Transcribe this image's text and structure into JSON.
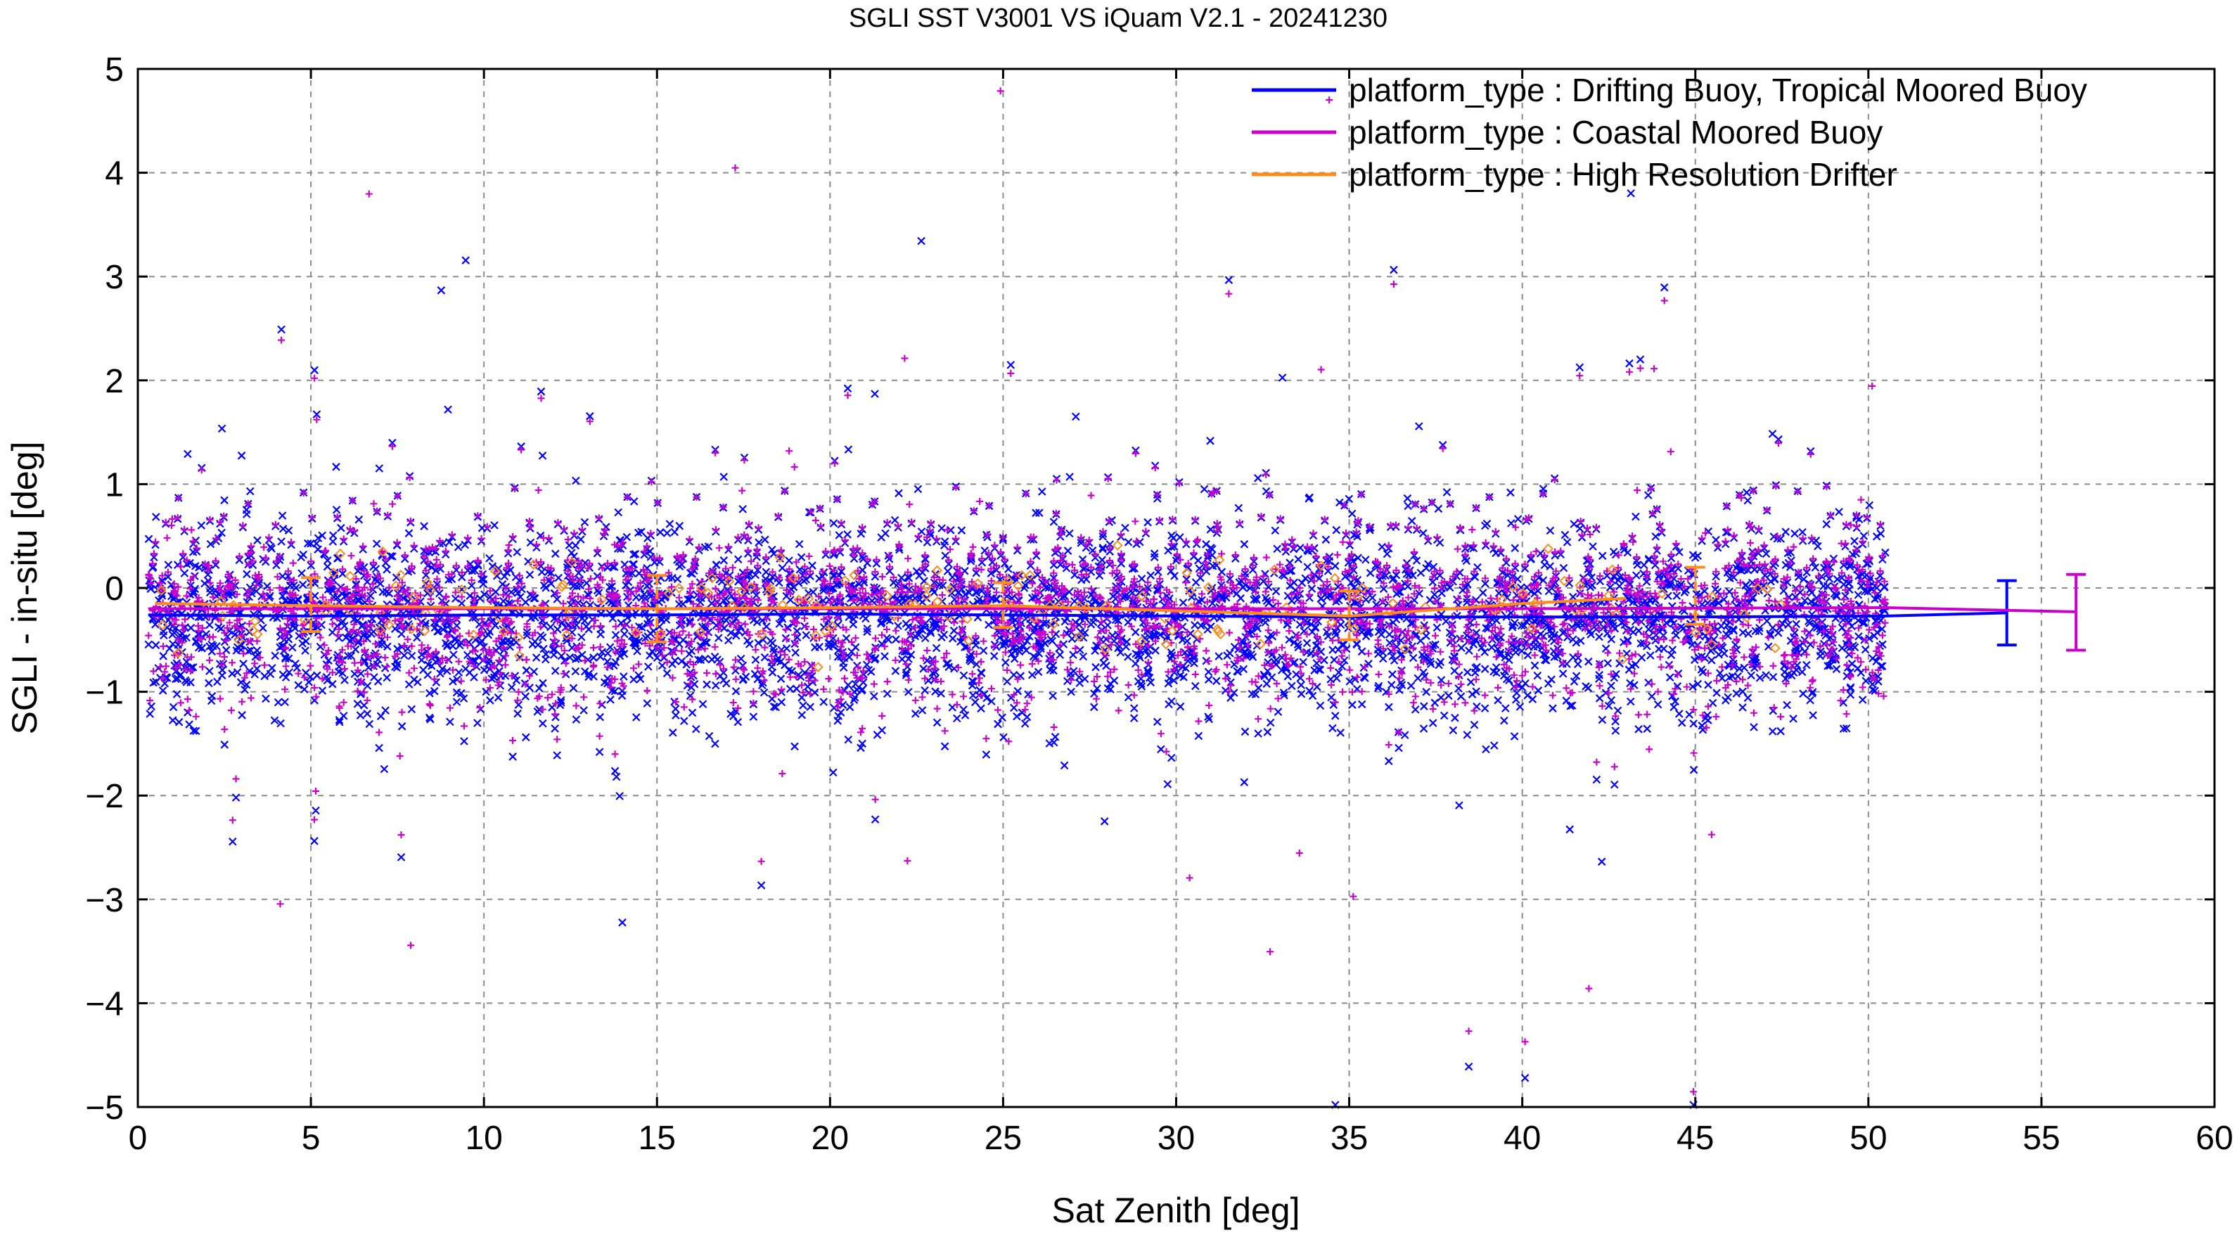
{
  "chart_data": {
    "type": "scatter",
    "title": "SGLI SST V3001 VS iQuam V2.1  - 20241230",
    "xlabel": "Sat Zenith [deg]",
    "ylabel": "SGLI - in-situ [deg]",
    "xlim": [
      0,
      60
    ],
    "ylim": [
      -5,
      5
    ],
    "x_ticks": [
      "0",
      "5",
      "10",
      "15",
      "20",
      "25",
      "30",
      "35",
      "40",
      "45",
      "50",
      "55",
      "60"
    ],
    "y_ticks": [
      "5",
      "4",
      "3",
      "2",
      "1",
      "0",
      "−1",
      "−2",
      "−3",
      "−4",
      "−5"
    ],
    "grid": true,
    "legend_position": "top-right",
    "series": [
      {
        "name": "platform_type : Drifting Buoy, Tropical Moored Buoy",
        "color": "#0000ff",
        "marker": "x",
        "x_range_of_points": [
          0.3,
          50.5
        ],
        "mean_line": {
          "x": [
            0.3,
            5,
            10,
            15,
            20,
            25,
            30,
            35,
            40,
            45,
            50.5,
            54
          ],
          "y": [
            -0.26,
            -0.27,
            -0.26,
            -0.26,
            -0.25,
            -0.26,
            -0.27,
            -0.28,
            -0.28,
            -0.28,
            -0.27,
            -0.24
          ]
        },
        "error_bar": {
          "x": 54,
          "mean": -0.24,
          "low": -0.55,
          "high": 0.07
        }
      },
      {
        "name": "platform_type : Coastal Moored Buoy",
        "color": "#cc00cc",
        "marker": "+",
        "x_range_of_points": [
          0.3,
          50.5
        ],
        "mean_line": {
          "x": [
            0.3,
            10,
            20,
            30,
            40,
            50.5,
            56
          ],
          "y": [
            -0.2,
            -0.2,
            -0.2,
            -0.2,
            -0.2,
            -0.19,
            -0.23
          ]
        },
        "error_bar": {
          "x": 56,
          "mean": -0.23,
          "low": -0.6,
          "high": 0.13
        }
      },
      {
        "name": "platform_type : High Resolution Drifter",
        "color": "#ff8c1a",
        "marker": "diamond",
        "x_range_of_points": [
          0.3,
          47.5
        ],
        "mean_line": {
          "x": [
            0.5,
            5,
            10,
            15,
            20,
            25,
            30,
            35,
            40,
            43
          ],
          "y": [
            -0.15,
            -0.17,
            -0.19,
            -0.2,
            -0.19,
            -0.17,
            -0.22,
            -0.27,
            -0.15,
            -0.1
          ]
        },
        "error_bars": [
          {
            "x": 5,
            "mean": -0.15,
            "low": -0.42,
            "high": 0.1
          },
          {
            "x": 15,
            "mean": -0.2,
            "low": -0.52,
            "high": 0.12
          },
          {
            "x": 25,
            "mean": -0.16,
            "low": -0.38,
            "high": 0.05
          },
          {
            "x": 35,
            "mean": -0.27,
            "low": -0.5,
            "high": -0.03
          },
          {
            "x": 45,
            "mean": -0.08,
            "low": -0.35,
            "high": 0.2
          }
        ]
      }
    ]
  }
}
